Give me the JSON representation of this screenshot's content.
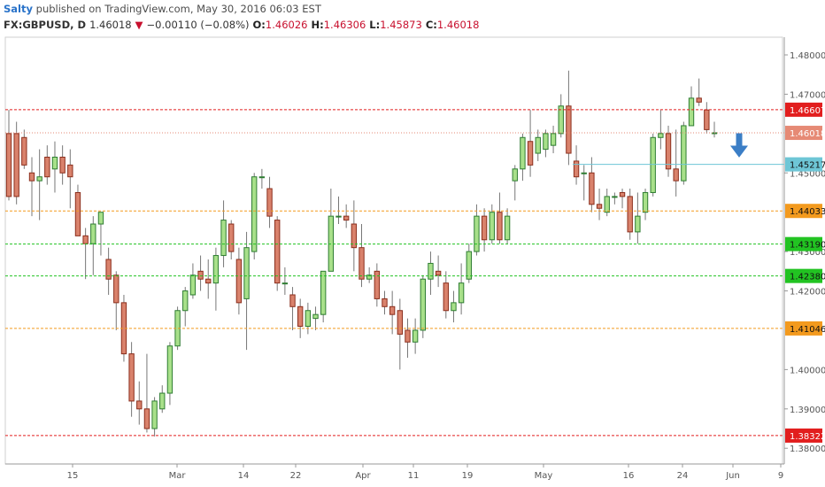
{
  "header": {
    "author": "Salty",
    "published": " published on TradingView.com, May 30, 2016 06:03 EST",
    "symbol": "FX:GBPUSD, D",
    "last": "1.46018",
    "change_arrow": "▼",
    "change": "−0.00110 (−0.08%)",
    "open_label": "O:",
    "open": "1.46026",
    "high_label": "H:",
    "high": "1.46306",
    "low_label": "L:",
    "low": "1.45873",
    "close_label": "C:",
    "close": "1.46018"
  },
  "colors": {
    "up_fill": "#a8e08a",
    "up_border": "#2e7d32",
    "down_fill": "#d9826c",
    "down_border": "#8b2e1c",
    "wick": "#777777",
    "arrow": "#3b7ec6"
  },
  "chart_data": {
    "type": "candlestick",
    "ylim": [
      1.376,
      1.4845
    ],
    "y_ticks": [
      "1.48000",
      "1.47000",
      "1.45000",
      "1.43000",
      "1.42000",
      "1.40000",
      "1.39000",
      "1.38000"
    ],
    "x_ticks": [
      "15",
      "Mar",
      "14",
      "22",
      "Apr",
      "11",
      "19",
      "May",
      "16",
      "24",
      "Jun",
      "9"
    ],
    "candles": [
      {
        "o": 1.46,
        "h": 1.466,
        "l": 1.443,
        "c": 1.444
      },
      {
        "o": 1.46,
        "h": 1.463,
        "l": 1.442,
        "c": 1.444
      },
      {
        "o": 1.459,
        "h": 1.461,
        "l": 1.451,
        "c": 1.452
      },
      {
        "o": 1.45,
        "h": 1.454,
        "l": 1.439,
        "c": 1.448
      },
      {
        "o": 1.448,
        "h": 1.456,
        "l": 1.438,
        "c": 1.449
      },
      {
        "o": 1.454,
        "h": 1.457,
        "l": 1.447,
        "c": 1.449
      },
      {
        "o": 1.451,
        "h": 1.458,
        "l": 1.445,
        "c": 1.454
      },
      {
        "o": 1.454,
        "h": 1.457,
        "l": 1.447,
        "c": 1.45
      },
      {
        "o": 1.452,
        "h": 1.456,
        "l": 1.441,
        "c": 1.449
      },
      {
        "o": 1.445,
        "h": 1.447,
        "l": 1.435,
        "c": 1.434
      },
      {
        "o": 1.434,
        "h": 1.436,
        "l": 1.423,
        "c": 1.432
      },
      {
        "o": 1.432,
        "h": 1.439,
        "l": 1.424,
        "c": 1.437
      },
      {
        "o": 1.437,
        "h": 1.44,
        "l": 1.429,
        "c": 1.44
      },
      {
        "o": 1.428,
        "h": 1.431,
        "l": 1.419,
        "c": 1.423
      },
      {
        "o": 1.424,
        "h": 1.425,
        "l": 1.41,
        "c": 1.417
      },
      {
        "o": 1.417,
        "h": 1.419,
        "l": 1.402,
        "c": 1.404
      },
      {
        "o": 1.404,
        "h": 1.407,
        "l": 1.388,
        "c": 1.392
      },
      {
        "o": 1.392,
        "h": 1.397,
        "l": 1.386,
        "c": 1.39
      },
      {
        "o": 1.39,
        "h": 1.404,
        "l": 1.384,
        "c": 1.385
      },
      {
        "o": 1.385,
        "h": 1.393,
        "l": 1.383,
        "c": 1.392
      },
      {
        "o": 1.39,
        "h": 1.396,
        "l": 1.389,
        "c": 1.394
      },
      {
        "o": 1.394,
        "h": 1.407,
        "l": 1.391,
        "c": 1.406
      },
      {
        "o": 1.406,
        "h": 1.416,
        "l": 1.405,
        "c": 1.415
      },
      {
        "o": 1.415,
        "h": 1.421,
        "l": 1.411,
        "c": 1.42
      },
      {
        "o": 1.419,
        "h": 1.427,
        "l": 1.418,
        "c": 1.424
      },
      {
        "o": 1.425,
        "h": 1.429,
        "l": 1.42,
        "c": 1.423
      },
      {
        "o": 1.423,
        "h": 1.428,
        "l": 1.418,
        "c": 1.422
      },
      {
        "o": 1.422,
        "h": 1.431,
        "l": 1.415,
        "c": 1.429
      },
      {
        "o": 1.429,
        "h": 1.443,
        "l": 1.426,
        "c": 1.438
      },
      {
        "o": 1.437,
        "h": 1.438,
        "l": 1.428,
        "c": 1.43
      },
      {
        "o": 1.428,
        "h": 1.431,
        "l": 1.414,
        "c": 1.417
      },
      {
        "o": 1.418,
        "h": 1.435,
        "l": 1.405,
        "c": 1.431
      },
      {
        "o": 1.43,
        "h": 1.45,
        "l": 1.428,
        "c": 1.449
      },
      {
        "o": 1.449,
        "h": 1.451,
        "l": 1.446,
        "c": 1.449
      },
      {
        "o": 1.446,
        "h": 1.449,
        "l": 1.436,
        "c": 1.439
      },
      {
        "o": 1.438,
        "h": 1.439,
        "l": 1.42,
        "c": 1.422
      },
      {
        "o": 1.422,
        "h": 1.426,
        "l": 1.419,
        "c": 1.422
      },
      {
        "o": 1.419,
        "h": 1.421,
        "l": 1.41,
        "c": 1.416
      },
      {
        "o": 1.416,
        "h": 1.418,
        "l": 1.408,
        "c": 1.411
      },
      {
        "o": 1.411,
        "h": 1.417,
        "l": 1.409,
        "c": 1.415
      },
      {
        "o": 1.413,
        "h": 1.416,
        "l": 1.41,
        "c": 1.414
      },
      {
        "o": 1.414,
        "h": 1.425,
        "l": 1.412,
        "c": 1.425
      },
      {
        "o": 1.425,
        "h": 1.446,
        "l": 1.425,
        "c": 1.439
      },
      {
        "o": 1.439,
        "h": 1.444,
        "l": 1.437,
        "c": 1.439
      },
      {
        "o": 1.439,
        "h": 1.442,
        "l": 1.436,
        "c": 1.438
      },
      {
        "o": 1.437,
        "h": 1.443,
        "l": 1.425,
        "c": 1.431
      },
      {
        "o": 1.431,
        "h": 1.437,
        "l": 1.421,
        "c": 1.423
      },
      {
        "o": 1.423,
        "h": 1.426,
        "l": 1.422,
        "c": 1.424
      },
      {
        "o": 1.425,
        "h": 1.427,
        "l": 1.416,
        "c": 1.418
      },
      {
        "o": 1.418,
        "h": 1.42,
        "l": 1.414,
        "c": 1.416
      },
      {
        "o": 1.416,
        "h": 1.42,
        "l": 1.409,
        "c": 1.414
      },
      {
        "o": 1.415,
        "h": 1.418,
        "l": 1.4,
        "c": 1.409
      },
      {
        "o": 1.41,
        "h": 1.413,
        "l": 1.403,
        "c": 1.407
      },
      {
        "o": 1.407,
        "h": 1.413,
        "l": 1.404,
        "c": 1.41
      },
      {
        "o": 1.41,
        "h": 1.424,
        "l": 1.408,
        "c": 1.423
      },
      {
        "o": 1.423,
        "h": 1.43,
        "l": 1.419,
        "c": 1.427
      },
      {
        "o": 1.425,
        "h": 1.429,
        "l": 1.421,
        "c": 1.424
      },
      {
        "o": 1.422,
        "h": 1.425,
        "l": 1.413,
        "c": 1.415
      },
      {
        "o": 1.415,
        "h": 1.42,
        "l": 1.412,
        "c": 1.417
      },
      {
        "o": 1.417,
        "h": 1.427,
        "l": 1.414,
        "c": 1.422
      },
      {
        "o": 1.423,
        "h": 1.432,
        "l": 1.422,
        "c": 1.43
      },
      {
        "o": 1.43,
        "h": 1.442,
        "l": 1.429,
        "c": 1.439
      },
      {
        "o": 1.439,
        "h": 1.441,
        "l": 1.43,
        "c": 1.433
      },
      {
        "o": 1.433,
        "h": 1.442,
        "l": 1.432,
        "c": 1.44
      },
      {
        "o": 1.44,
        "h": 1.445,
        "l": 1.432,
        "c": 1.433
      },
      {
        "o": 1.433,
        "h": 1.441,
        "l": 1.432,
        "c": 1.439
      },
      {
        "o": 1.448,
        "h": 1.452,
        "l": 1.443,
        "c": 1.451
      },
      {
        "o": 1.451,
        "h": 1.46,
        "l": 1.448,
        "c": 1.459
      },
      {
        "o": 1.458,
        "h": 1.466,
        "l": 1.449,
        "c": 1.452
      },
      {
        "o": 1.455,
        "h": 1.461,
        "l": 1.453,
        "c": 1.459
      },
      {
        "o": 1.456,
        "h": 1.461,
        "l": 1.454,
        "c": 1.46
      },
      {
        "o": 1.457,
        "h": 1.462,
        "l": 1.455,
        "c": 1.46
      },
      {
        "o": 1.46,
        "h": 1.47,
        "l": 1.459,
        "c": 1.467
      },
      {
        "o": 1.467,
        "h": 1.476,
        "l": 1.452,
        "c": 1.455
      },
      {
        "o": 1.453,
        "h": 1.457,
        "l": 1.447,
        "c": 1.449
      },
      {
        "o": 1.45,
        "h": 1.452,
        "l": 1.443,
        "c": 1.45
      },
      {
        "o": 1.45,
        "h": 1.454,
        "l": 1.44,
        "c": 1.442
      },
      {
        "o": 1.442,
        "h": 1.446,
        "l": 1.438,
        "c": 1.441
      },
      {
        "o": 1.44,
        "h": 1.446,
        "l": 1.439,
        "c": 1.444
      },
      {
        "o": 1.444,
        "h": 1.445,
        "l": 1.442,
        "c": 1.444
      },
      {
        "o": 1.445,
        "h": 1.446,
        "l": 1.441,
        "c": 1.444
      },
      {
        "o": 1.444,
        "h": 1.446,
        "l": 1.433,
        "c": 1.435
      },
      {
        "o": 1.435,
        "h": 1.445,
        "l": 1.432,
        "c": 1.439
      },
      {
        "o": 1.44,
        "h": 1.446,
        "l": 1.438,
        "c": 1.445
      },
      {
        "o": 1.445,
        "h": 1.46,
        "l": 1.444,
        "c": 1.459
      },
      {
        "o": 1.459,
        "h": 1.466,
        "l": 1.456,
        "c": 1.46
      },
      {
        "o": 1.46,
        "h": 1.462,
        "l": 1.449,
        "c": 1.451
      },
      {
        "o": 1.451,
        "h": 1.461,
        "l": 1.444,
        "c": 1.448
      },
      {
        "o": 1.448,
        "h": 1.463,
        "l": 1.447,
        "c": 1.462
      },
      {
        "o": 1.462,
        "h": 1.472,
        "l": 1.462,
        "c": 1.469
      },
      {
        "o": 1.469,
        "h": 1.474,
        "l": 1.467,
        "c": 1.468
      },
      {
        "o": 1.466,
        "h": 1.468,
        "l": 1.46,
        "c": 1.461
      },
      {
        "o": 1.46,
        "h": 1.463,
        "l": 1.459,
        "c": 1.4602
      }
    ],
    "hlines": [
      {
        "value": 1.46607,
        "label": "1.46607",
        "color": "#e21e1e",
        "dash": "3,2"
      },
      {
        "value": 1.46018,
        "label": "1.46018",
        "color": "#e68a75",
        "dash": "1,2"
      },
      {
        "value": 1.45217,
        "label": "1.45217",
        "color": "#6ec6d6",
        "dash": "",
        "x_start_frac": 0.73
      },
      {
        "value": 1.44033,
        "label": "1.44033",
        "color": "#f39a1e",
        "dash": "3,2"
      },
      {
        "value": 1.4319,
        "label": "1.43190",
        "color": "#22c322",
        "dash": "3,2"
      },
      {
        "value": 1.4238,
        "label": "1.42380",
        "color": "#22c322",
        "dash": "3,2"
      },
      {
        "value": 1.41046,
        "label": "1.41046",
        "color": "#f39a1e",
        "dash": "3,2"
      },
      {
        "value": 1.38322,
        "label": "1.38322",
        "color": "#e21e1e",
        "dash": "3,2"
      }
    ],
    "annotation": {
      "type": "arrow-down",
      "near_value": 1.455
    }
  }
}
